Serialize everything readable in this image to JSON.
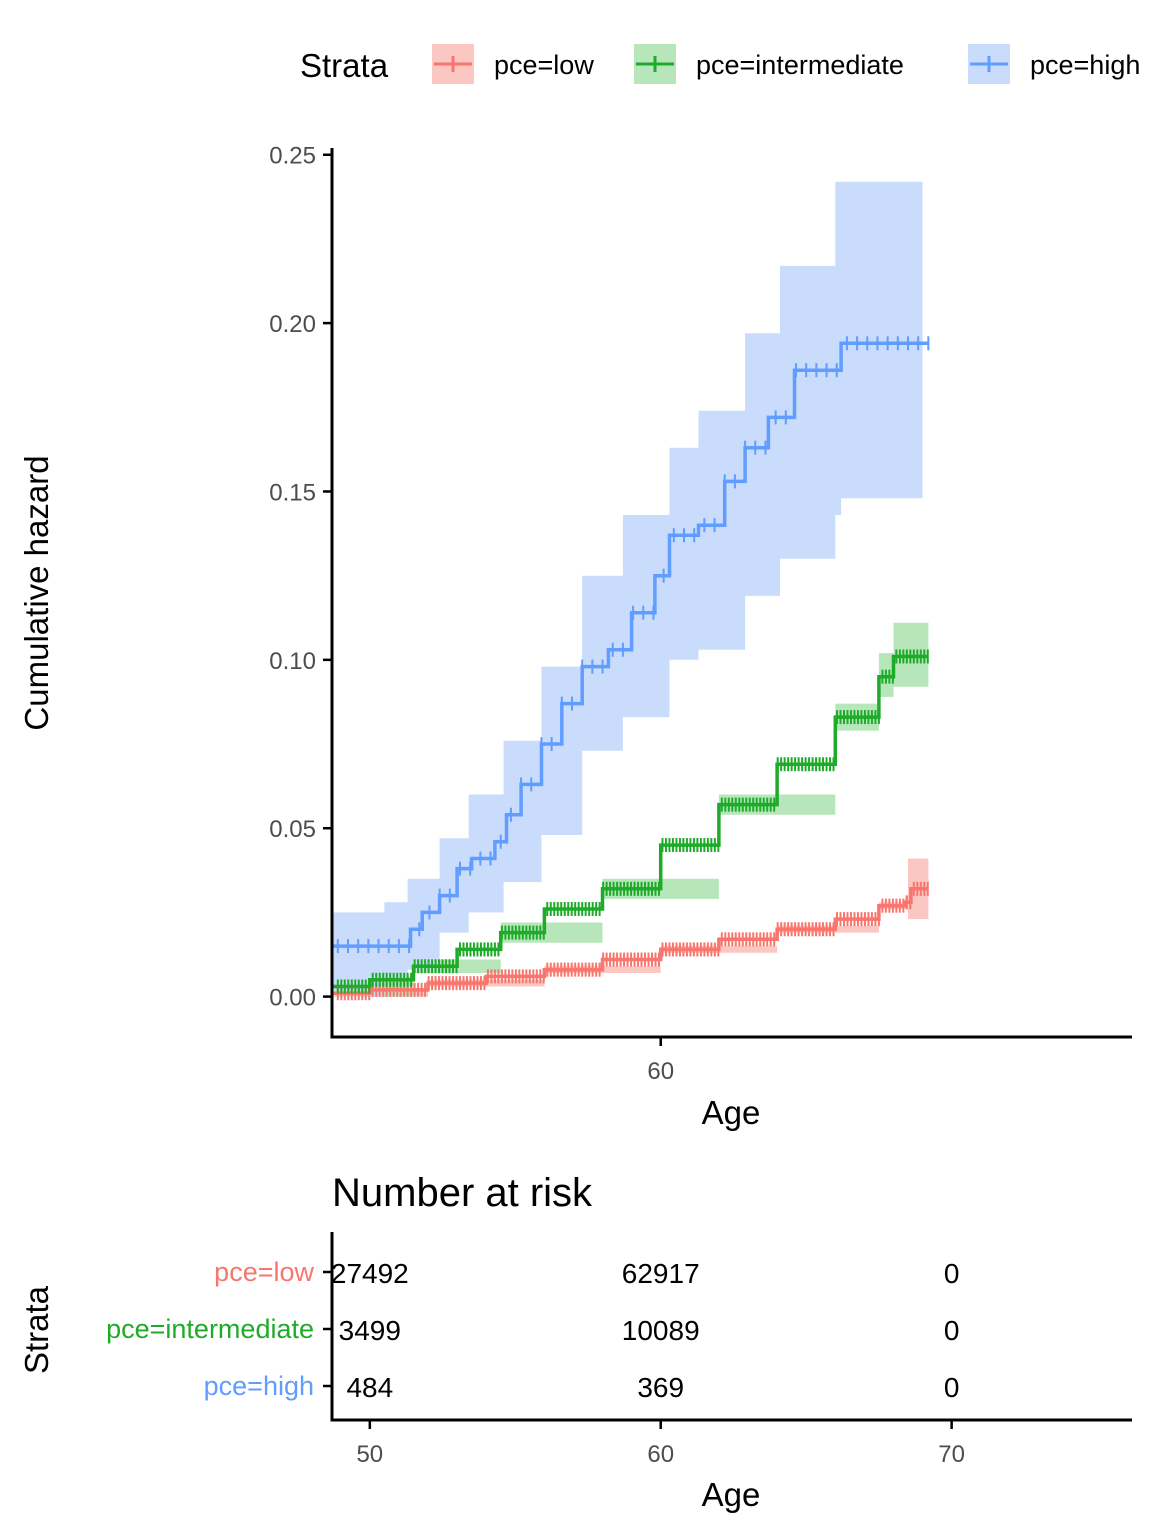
{
  "legend": {
    "title": "Strata",
    "items": [
      {
        "label": "pce=low",
        "color": "#F8766D"
      },
      {
        "label": "pce=intermediate",
        "color": "#1FAB2A"
      },
      {
        "label": "pce=high",
        "color": "#619CFF"
      }
    ]
  },
  "chart_data": {
    "type": "line",
    "xlabel": "Age",
    "ylabel": "Cumulative hazard",
    "xlim": [
      48.7,
      76.2
    ],
    "ylim": [
      -0.012,
      0.252
    ],
    "xticks": [
      60
    ],
    "yticks": [
      0.0,
      0.05,
      0.1,
      0.15,
      0.2,
      0.25
    ],
    "ytick_labels": [
      "0.00",
      "0.05",
      "0.10",
      "0.15",
      "0.20",
      "0.25"
    ],
    "grid": false,
    "legend_position": "top",
    "series": [
      {
        "name": "pce=low",
        "color": "#F8766D",
        "fill": "#FBC7C3",
        "points": [
          [
            48.7,
            0.001
          ],
          [
            50,
            0.002
          ],
          [
            52,
            0.004
          ],
          [
            54,
            0.006
          ],
          [
            56,
            0.008
          ],
          [
            58,
            0.011
          ],
          [
            60,
            0.014
          ],
          [
            62,
            0.017
          ],
          [
            64,
            0.02
          ],
          [
            66,
            0.023
          ],
          [
            67.5,
            0.027
          ],
          [
            68.4,
            0.028
          ],
          [
            68.6,
            0.032
          ],
          [
            69.2,
            0.032
          ]
        ],
        "band": [
          [
            48.7,
            0.0,
            0.002
          ],
          [
            52,
            0.003,
            0.005
          ],
          [
            56,
            0.007,
            0.009
          ],
          [
            60,
            0.013,
            0.015
          ],
          [
            64,
            0.019,
            0.021
          ],
          [
            67.5,
            0.026,
            0.028
          ],
          [
            68.4,
            0.026,
            0.03
          ],
          [
            68.5,
            0.023,
            0.041
          ],
          [
            69.2,
            0.023,
            0.041
          ]
        ]
      },
      {
        "name": "pce=intermediate",
        "color": "#1FAB2A",
        "fill": "#B8E6BB",
        "points": [
          [
            48.7,
            0.003
          ],
          [
            50,
            0.005
          ],
          [
            51.5,
            0.009
          ],
          [
            53,
            0.014
          ],
          [
            54.5,
            0.019
          ],
          [
            56,
            0.026
          ],
          [
            58,
            0.032
          ],
          [
            60,
            0.045
          ],
          [
            62,
            0.057
          ],
          [
            64,
            0.069
          ],
          [
            66,
            0.083
          ],
          [
            67.5,
            0.095
          ],
          [
            68,
            0.101
          ],
          [
            69.2,
            0.101
          ]
        ],
        "band": [
          [
            48.7,
            0.0,
            0.006
          ],
          [
            51.5,
            0.007,
            0.011
          ],
          [
            54.5,
            0.016,
            0.022
          ],
          [
            58,
            0.029,
            0.035
          ],
          [
            62,
            0.054,
            0.06
          ],
          [
            66,
            0.079,
            0.087
          ],
          [
            67.5,
            0.089,
            0.102
          ],
          [
            68,
            0.092,
            0.111
          ],
          [
            69.2,
            0.092,
            0.111
          ]
        ]
      },
      {
        "name": "pce=high",
        "color": "#619CFF",
        "fill": "#C9DCFB",
        "points": [
          [
            48.7,
            0.015
          ],
          [
            51.2,
            0.015
          ],
          [
            51.4,
            0.02
          ],
          [
            51.8,
            0.025
          ],
          [
            52.4,
            0.03
          ],
          [
            53,
            0.038
          ],
          [
            53.5,
            0.041
          ],
          [
            54.3,
            0.046
          ],
          [
            54.7,
            0.054
          ],
          [
            55.2,
            0.063
          ],
          [
            55.9,
            0.075
          ],
          [
            56.6,
            0.087
          ],
          [
            57.3,
            0.098
          ],
          [
            58.2,
            0.103
          ],
          [
            59,
            0.114
          ],
          [
            59.8,
            0.125
          ],
          [
            60.3,
            0.137
          ],
          [
            61.3,
            0.14
          ],
          [
            62.2,
            0.153
          ],
          [
            62.9,
            0.163
          ],
          [
            63.7,
            0.172
          ],
          [
            64.6,
            0.186
          ],
          [
            66.1,
            0.186
          ],
          [
            66.2,
            0.194
          ],
          [
            69.2,
            0.194
          ]
        ],
        "band": [
          [
            48.7,
            0.0,
            0.025
          ],
          [
            50.5,
            0.005,
            0.028
          ],
          [
            51.3,
            0.008,
            0.035
          ],
          [
            52.4,
            0.019,
            0.047
          ],
          [
            53.4,
            0.025,
            0.06
          ],
          [
            54.6,
            0.034,
            0.076
          ],
          [
            55.9,
            0.048,
            0.098
          ],
          [
            57.3,
            0.073,
            0.125
          ],
          [
            58.7,
            0.083,
            0.143
          ],
          [
            60.3,
            0.1,
            0.163
          ],
          [
            61.3,
            0.103,
            0.174
          ],
          [
            62.9,
            0.119,
            0.197
          ],
          [
            64.1,
            0.13,
            0.217
          ],
          [
            66,
            0.143,
            0.242
          ],
          [
            66.1,
            0.143,
            0.242
          ],
          [
            66.2,
            0.148,
            0.242
          ],
          [
            69,
            0.148,
            0.242
          ]
        ]
      }
    ]
  },
  "risk_table": {
    "title": "Number at risk",
    "ylabel": "Strata",
    "xlabel": "Age",
    "xlim": [
      48.7,
      76.2
    ],
    "xticks": [
      50,
      60,
      70
    ],
    "columns_x": [
      50,
      60,
      70
    ],
    "rows": [
      {
        "label": "pce=low",
        "color": "#F8766D",
        "values": [
          "27492",
          "62917",
          "0"
        ]
      },
      {
        "label": "pce=intermediate",
        "color": "#1FAB2A",
        "values": [
          "3499",
          "10089",
          "0"
        ]
      },
      {
        "label": "pce=high",
        "color": "#619CFF",
        "values": [
          "484",
          "369",
          "0"
        ]
      }
    ]
  }
}
